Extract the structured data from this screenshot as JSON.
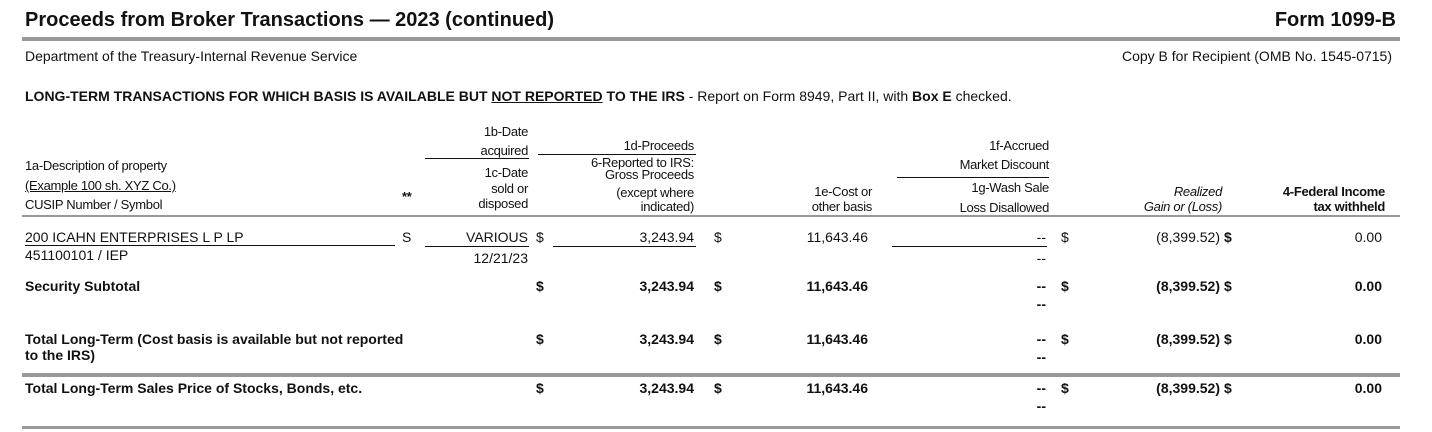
{
  "header": {
    "title": "Proceeds from Broker Transactions — 2023 (continued)",
    "form": "Form 1099-B",
    "agency": "Department of the Treasury-Internal Revenue Service",
    "copy": "Copy B for Recipient (OMB No. 1545-0715)"
  },
  "section": {
    "heading_a": "LONG-TERM TRANSACTIONS FOR WHICH BASIS IS AVAILABLE BUT ",
    "heading_b": "NOT REPORTED",
    "heading_c": " TO THE IRS",
    "note_a": " - Report on Form 8949, Part II, with ",
    "note_b": "Box E",
    "note_c": " checked."
  },
  "columns": {
    "desc1": "1a-Description of property",
    "desc2": "(Example 100 sh. XYZ Co.)",
    "desc3": "CUSIP Number / Symbol",
    "flag": "**",
    "acq1": "1b-Date",
    "acq2": "acquired",
    "sold1": "1c-Date",
    "sold2": "sold or",
    "sold3": "disposed",
    "proc": "1d-Proceeds",
    "rep1": "6-Reported to IRS:",
    "rep2": "Gross Proceeds",
    "rep3": "(except where",
    "rep4": "indicated)",
    "cost1": "1e-Cost or",
    "cost2": "other basis",
    "mkt1": "1f-Accrued",
    "mkt2": "Market Discount",
    "wash1": "1g-Wash Sale",
    "wash2": "Loss Disallowed",
    "gain1": "Realized",
    "gain2": "Gain or (Loss)",
    "fed1": "4-Federal Income",
    "fed2": "tax withheld"
  },
  "row": {
    "desc": "200 ICAHN ENTERPRISES L P LP",
    "cusip": "451100101 / IEP",
    "flag": "S",
    "acquired": "VARIOUS",
    "sold": "12/21/23",
    "proceeds": "3,243.94",
    "cost": "11,643.46",
    "market": "--",
    "wash": "--",
    "gain": "(8,399.52)",
    "fed": "0.00"
  },
  "totals": [
    {
      "label": "Security Subtotal",
      "proceeds": "3,243.94",
      "cost": "11,643.46",
      "market": "--",
      "wash": "--",
      "gain": "(8,399.52)",
      "fed": "0.00"
    },
    {
      "label": "Total Long-Term (Cost basis is available but not reported",
      "label2": "to the IRS)",
      "proceeds": "3,243.94",
      "cost": "11,643.46",
      "market": "--",
      "wash": "--",
      "gain": "(8,399.52)",
      "fed": "0.00"
    },
    {
      "label": "Total Long-Term Sales Price of Stocks, Bonds, etc.",
      "proceeds": "3,243.94",
      "cost": "11,643.46",
      "market": "--",
      "wash": "--",
      "gain": "(8,399.52)",
      "fed": "0.00"
    }
  ],
  "dollar": "$"
}
